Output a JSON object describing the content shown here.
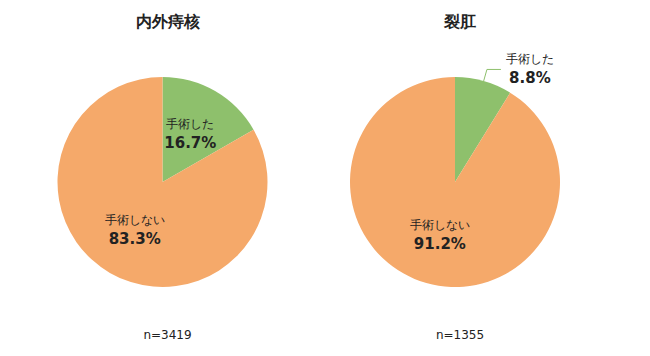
{
  "chart_data": [
    {
      "type": "pie",
      "title": "内外痔核",
      "categories": [
        "手術した",
        "手術しない"
      ],
      "values": [
        16.7,
        83.3
      ],
      "value_labels": [
        "16.7%",
        "83.3%"
      ],
      "colors": [
        "#8ec06c",
        "#f5a96a"
      ],
      "data_labels": true,
      "annotations": [
        "n=3419"
      ]
    },
    {
      "type": "pie",
      "title": "裂肛",
      "categories": [
        "手術した",
        "手術しない"
      ],
      "values": [
        8.8,
        91.2
      ],
      "value_labels": [
        "8.8%",
        "91.2%"
      ],
      "colors": [
        "#8ec06c",
        "#f5a96a"
      ],
      "data_labels": true,
      "annotations": [
        "n=1355"
      ]
    }
  ]
}
